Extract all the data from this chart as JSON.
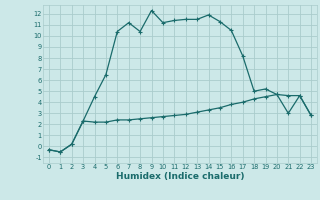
{
  "title": "",
  "xlabel": "Humidex (Indice chaleur)",
  "ylabel": "",
  "background_color": "#cce8e8",
  "grid_color": "#aacccc",
  "line_color": "#1a6b6b",
  "x_ticks": [
    0,
    1,
    2,
    3,
    4,
    5,
    6,
    7,
    8,
    9,
    10,
    11,
    12,
    13,
    14,
    15,
    16,
    17,
    18,
    19,
    20,
    21,
    22,
    23
  ],
  "y_ticks": [
    -1,
    0,
    1,
    2,
    3,
    4,
    5,
    6,
    7,
    8,
    9,
    10,
    11,
    12
  ],
  "ylim": [
    -1.5,
    12.8
  ],
  "xlim": [
    -0.5,
    23.5
  ],
  "line1_x": [
    0,
    1,
    2,
    3,
    4,
    5,
    6,
    7,
    8,
    9,
    10,
    11,
    12,
    13,
    14,
    15,
    16,
    17,
    18,
    19,
    20,
    21,
    22,
    23
  ],
  "line1_y": [
    -0.3,
    -0.5,
    0.2,
    2.3,
    4.5,
    6.5,
    10.4,
    11.2,
    10.4,
    12.3,
    11.2,
    11.4,
    11.5,
    11.5,
    11.9,
    11.3,
    10.5,
    8.2,
    5.0,
    5.2,
    4.7,
    4.6,
    4.6,
    2.8
  ],
  "line2_x": [
    0,
    1,
    2,
    3,
    4,
    5,
    6,
    7,
    8,
    9,
    10,
    11,
    12,
    13,
    14,
    15,
    16,
    17,
    18,
    19,
    20,
    21,
    22,
    23
  ],
  "line2_y": [
    -0.3,
    -0.5,
    0.2,
    2.3,
    2.2,
    2.2,
    2.4,
    2.4,
    2.5,
    2.6,
    2.7,
    2.8,
    2.9,
    3.1,
    3.3,
    3.5,
    3.8,
    4.0,
    4.3,
    4.5,
    4.7,
    3.0,
    4.6,
    2.8
  ]
}
